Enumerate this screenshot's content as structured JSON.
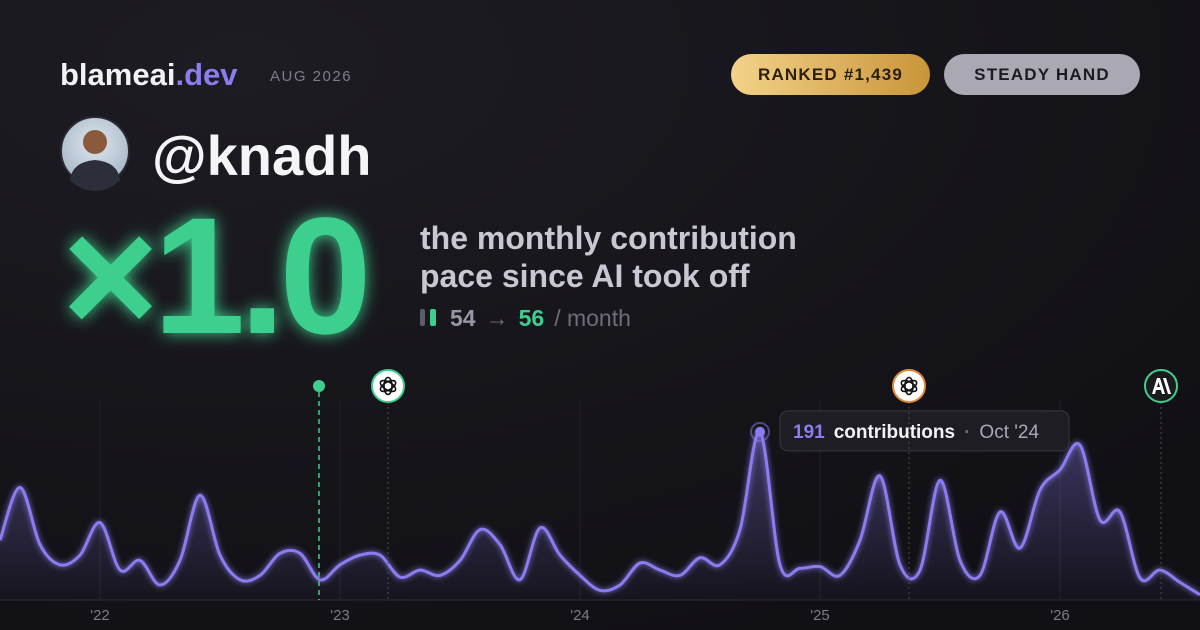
{
  "header": {
    "brand": "blameai",
    "brand_tld": ".dev",
    "date": "AUG 2026",
    "badges": [
      "RANKED #1,439",
      "STEADY HAND"
    ]
  },
  "profile": {
    "handle": "@knadh"
  },
  "stat": {
    "multiplier": "×1.0",
    "caption": [
      "the monthly contribution",
      "pace since AI took off"
    ],
    "before": 54,
    "arrow": "→",
    "after": 56,
    "unit": "/ month"
  },
  "chart_data": {
    "type": "line",
    "categories": [
      null,
      null,
      null,
      null,
      null,
      "'22",
      null,
      null,
      null,
      null,
      null,
      null,
      null,
      null,
      null,
      null,
      null,
      "'23",
      null,
      null,
      null,
      null,
      null,
      null,
      null,
      null,
      null,
      null,
      null,
      "'24",
      null,
      null,
      null,
      null,
      null,
      null,
      null,
      null,
      null,
      null,
      null,
      "'25",
      null,
      null,
      null,
      null,
      null,
      null,
      null,
      null,
      null,
      null,
      null,
      "'26",
      null,
      null,
      null,
      null,
      null,
      null,
      null
    ],
    "series": [
      {
        "color": "#8b7cf0",
        "values": [
          68,
          128,
          63,
          40,
          51,
          88,
          34,
          45,
          17,
          45,
          119,
          51,
          23,
          28,
          53,
          53,
          23,
          40,
          51,
          51,
          26,
          34,
          28,
          45,
          80,
          63,
          23,
          82,
          51,
          28,
          11,
          17,
          42,
          34,
          28,
          48,
          40,
          80,
          191,
          40,
          36,
          38,
          28,
          68,
          141,
          40,
          34,
          136,
          45,
          28,
          100,
          59,
          125,
          148,
          176,
          91,
          100,
          25,
          34,
          20,
          6
        ]
      }
    ],
    "ylim": [
      0,
      200
    ],
    "tooltip": {
      "unit": "contributions",
      "separator": "·",
      "date": "Oct '24"
    }
  }
}
